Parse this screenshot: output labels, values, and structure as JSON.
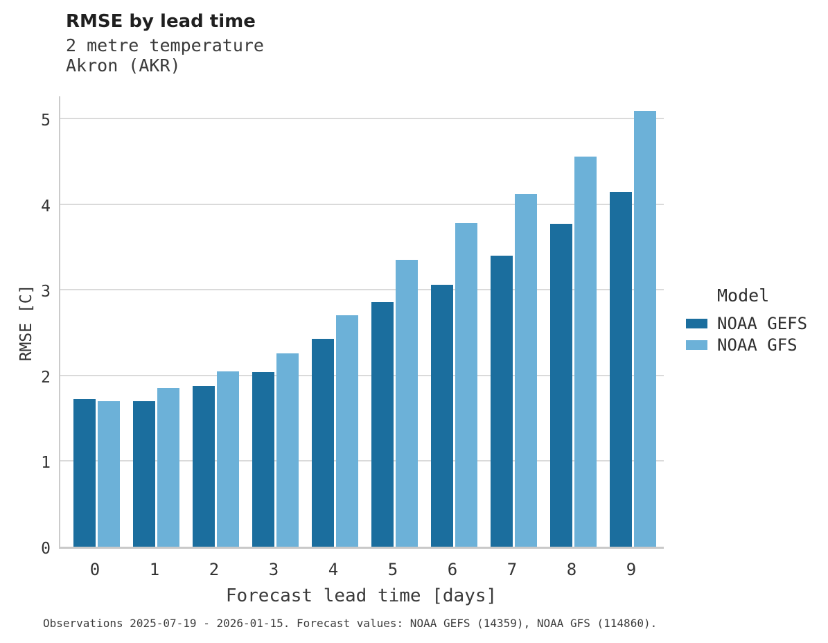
{
  "header": {
    "title": "RMSE by lead time",
    "subtitle_line1": "2 metre temperature",
    "subtitle_line2": "Akron (AKR)"
  },
  "legend": {
    "title": "Model",
    "entries": [
      {
        "label": "NOAA GEFS",
        "color": "#1b6e9e"
      },
      {
        "label": "NOAA GFS",
        "color": "#6cb1d8"
      }
    ]
  },
  "caption": "Observations 2025-07-19 - 2026-01-15. Forecast values: NOAA GEFS (14359), NOAA GFS (114860).",
  "chart_data": {
    "type": "bar",
    "title": "RMSE by lead time",
    "subtitle": [
      "2 metre temperature",
      "Akron (AKR)"
    ],
    "xlabel": "Forecast lead time [days]",
    "ylabel": "RMSE [C]",
    "categories": [
      "0",
      "1",
      "2",
      "3",
      "4",
      "5",
      "6",
      "7",
      "8",
      "9"
    ],
    "series": [
      {
        "name": "NOAA GEFS",
        "color": "#1b6e9e",
        "values": [
          1.72,
          1.7,
          1.88,
          2.04,
          2.43,
          2.86,
          3.06,
          3.4,
          3.77,
          4.14
        ]
      },
      {
        "name": "NOAA GFS",
        "color": "#6cb1d8",
        "values": [
          1.7,
          1.85,
          2.05,
          2.26,
          2.7,
          3.35,
          3.78,
          4.12,
          4.56,
          5.09
        ]
      }
    ],
    "ylim": [
      0,
      5.285
    ],
    "yticks": [
      0,
      1,
      2,
      3,
      4,
      5
    ],
    "grid": true,
    "legend_position": "right",
    "legend_title": "Model"
  }
}
